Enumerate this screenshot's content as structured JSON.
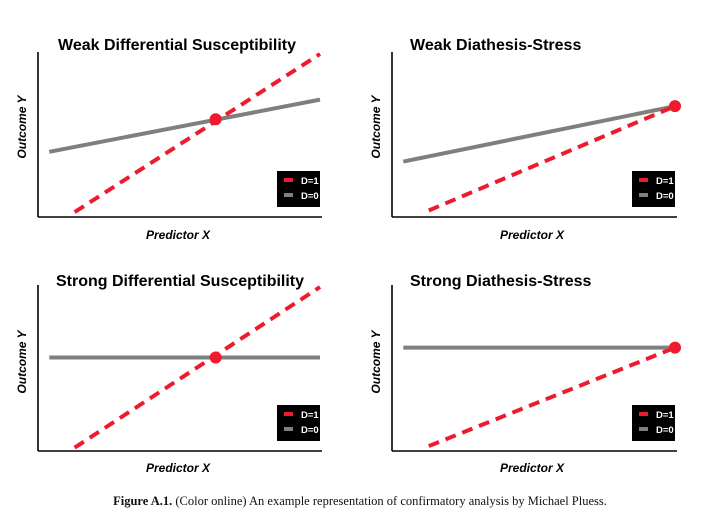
{
  "figure": {
    "caption_label": "Figure A.1.",
    "caption_text": " (Color online) An example representation of confirmatory analysis by Michael Pluess."
  },
  "colors": {
    "d1": "#ee1b2e",
    "d0": "#7f7f7f",
    "axis": "#000000",
    "legend_bg": "#000000",
    "legend_text": "#ffffff"
  },
  "chart_data": [
    {
      "type": "line",
      "title": "Weak Differential Susceptibility",
      "xlabel": "Predictor X",
      "ylabel": "Outcome Y",
      "xlim": [
        0,
        1
      ],
      "ylim": [
        0,
        1
      ],
      "legend_position": "bottom-right",
      "series": [
        {
          "name": "D=1",
          "style": "dashed",
          "x": [
            0.13,
            1.0
          ],
          "y": [
            0.03,
            1.0
          ]
        },
        {
          "name": "D=0",
          "style": "solid",
          "x": [
            0.04,
            1.0
          ],
          "y": [
            0.4,
            0.72
          ]
        }
      ],
      "marker": {
        "x": 0.63,
        "y": 0.6
      }
    },
    {
      "type": "line",
      "title": "Weak Diathesis-Stress",
      "xlabel": "Predictor X",
      "ylabel": "Outcome Y",
      "xlim": [
        0,
        1
      ],
      "ylim": [
        0,
        1
      ],
      "legend_position": "bottom-right",
      "series": [
        {
          "name": "D=1",
          "style": "dashed",
          "x": [
            0.13,
            1.0
          ],
          "y": [
            0.04,
            0.68
          ]
        },
        {
          "name": "D=0",
          "style": "solid",
          "x": [
            0.04,
            1.0
          ],
          "y": [
            0.34,
            0.68
          ]
        }
      ],
      "marker": {
        "x": 1.0,
        "y": 0.68
      }
    },
    {
      "type": "line",
      "title": "Strong Differential Susceptibility",
      "xlabel": "Predictor X",
      "ylabel": "Outcome Y",
      "xlim": [
        0,
        1
      ],
      "ylim": [
        0,
        1
      ],
      "legend_position": "bottom-right",
      "series": [
        {
          "name": "D=1",
          "style": "dashed",
          "x": [
            0.13,
            1.0
          ],
          "y": [
            0.02,
            1.0
          ]
        },
        {
          "name": "D=0",
          "style": "solid",
          "x": [
            0.04,
            1.0
          ],
          "y": [
            0.57,
            0.57
          ]
        }
      ],
      "marker": {
        "x": 0.63,
        "y": 0.57
      }
    },
    {
      "type": "line",
      "title": "Strong Diathesis-Stress",
      "xlabel": "Predictor X",
      "ylabel": "Outcome Y",
      "xlim": [
        0,
        1
      ],
      "ylim": [
        0,
        1
      ],
      "legend_position": "bottom-right",
      "series": [
        {
          "name": "D=1",
          "style": "dashed",
          "x": [
            0.13,
            1.0
          ],
          "y": [
            0.03,
            0.63
          ]
        },
        {
          "name": "D=0",
          "style": "solid",
          "x": [
            0.04,
            1.0
          ],
          "y": [
            0.63,
            0.63
          ]
        }
      ],
      "marker": {
        "x": 1.0,
        "y": 0.63
      }
    }
  ]
}
